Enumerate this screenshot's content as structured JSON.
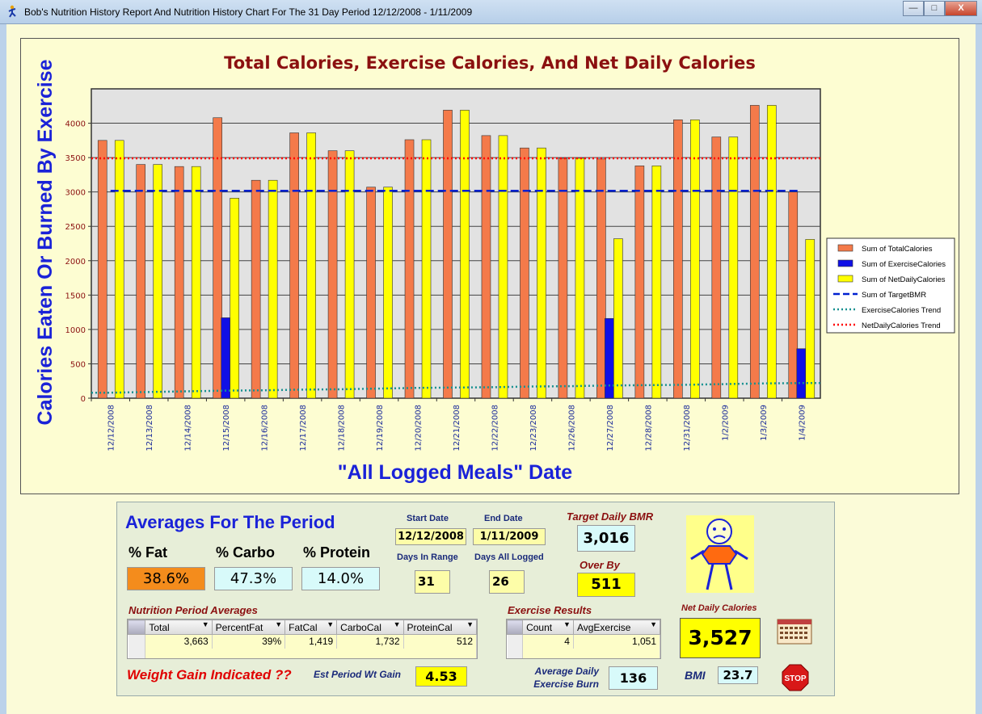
{
  "window": {
    "title": "Bob's Nutrition History Report And Nutrition History Chart For The 31 Day Period 12/12/2008 - 1/11/2009",
    "minimize_label": "—",
    "maximize_label": "□",
    "close_label": "X",
    "icon": "runner-icon"
  },
  "chart_data": {
    "type": "bar",
    "title": "Total Calories, Exercise Calories, And Net Daily Calories",
    "xlabel": "\"All Logged Meals\" Date",
    "ylabel": "Calories Eaten Or Burned By Exercise",
    "ylim": [
      0,
      4500
    ],
    "yticks": [
      0,
      500,
      1000,
      1500,
      2000,
      2500,
      3000,
      3500,
      4000
    ],
    "grid": true,
    "legend_position": "right",
    "categories": [
      "12/12/2008",
      "12/13/2008",
      "12/14/2008",
      "12/15/2008",
      "12/16/2008",
      "12/17/2008",
      "12/18/2008",
      "12/19/2008",
      "12/20/2008",
      "12/21/2008",
      "12/22/2008",
      "12/23/2008",
      "12/26/2008",
      "12/27/2008",
      "12/28/2008",
      "12/31/2008",
      "1/2/2009",
      "1/3/2009",
      "1/4/2009"
    ],
    "series": [
      {
        "name": "Sum of TotalCalories",
        "type": "bar",
        "color": "#f47a4a",
        "values": [
          3750,
          3400,
          3370,
          4080,
          3170,
          3860,
          3600,
          3070,
          3760,
          4190,
          3820,
          3640,
          3490,
          3480,
          3380,
          4050,
          3800,
          4260,
          3000
        ]
      },
      {
        "name": "Sum of ExerciseCalories",
        "type": "bar",
        "color": "#1010e6",
        "values": [
          0,
          0,
          0,
          1170,
          0,
          0,
          0,
          0,
          0,
          0,
          0,
          0,
          0,
          1160,
          0,
          0,
          0,
          0,
          720
        ]
      },
      {
        "name": "Sum of NetDailyCalories",
        "type": "bar",
        "color": "#ffff00",
        "values": [
          3750,
          3400,
          3370,
          2910,
          3170,
          3860,
          3600,
          3070,
          3760,
          4190,
          3820,
          3640,
          3490,
          2320,
          3380,
          4050,
          3800,
          4260,
          2310
        ]
      },
      {
        "name": "Sum of TargetBMR",
        "type": "line",
        "style": "dashed",
        "color": "#0020d0",
        "values": [
          3016,
          3016,
          3016,
          3016,
          3016,
          3016,
          3016,
          3016,
          3016,
          3016,
          3016,
          3016,
          3016,
          3016,
          3016,
          3016,
          3016,
          3016,
          3016
        ]
      },
      {
        "name": "ExerciseCalories Trend",
        "type": "line",
        "style": "dotted",
        "color": "#169090",
        "values": [
          80,
          90,
          100,
          110,
          115,
          125,
          130,
          140,
          150,
          155,
          160,
          170,
          175,
          185,
          190,
          195,
          205,
          215,
          220
        ]
      },
      {
        "name": "NetDailyCalories Trend",
        "type": "line",
        "style": "dotted",
        "color": "#ff0000",
        "values": [
          3490,
          3490,
          3490,
          3490,
          3490,
          3490,
          3490,
          3490,
          3490,
          3490,
          3490,
          3490,
          3490,
          3490,
          3490,
          3490,
          3490,
          3490,
          3490
        ]
      }
    ]
  },
  "averages": {
    "heading": "Averages For The Period",
    "fat_label": "% Fat",
    "carbo_label": "% Carbo",
    "protein_label": "% Protein",
    "fat_value": "38.6%",
    "carbo_value": "47.3%",
    "protein_value": "14.0%",
    "start_date_label": "Start Date",
    "end_date_label": "End Date",
    "start_date": "12/12/2008",
    "end_date": "1/11/2009",
    "days_in_range_label": "Days In Range",
    "days_logged_label": "Days All Logged",
    "days_in_range": "31",
    "days_logged": "26",
    "target_bmr_label": "Target Daily BMR",
    "target_bmr": "3,016",
    "over_by_label": "Over By",
    "over_by": "511",
    "net_daily_label": "Net Daily Calories",
    "net_daily": "3,527",
    "bmi_label": "BMI",
    "bmi": "23.7",
    "weight_gain_label": "Weight Gain Indicated ??",
    "est_wt_gain_label": "Est Period Wt Gain",
    "est_wt_gain": "4.53",
    "avg_burn_label_1": "Average Daily",
    "avg_burn_label_2": "Exercise Burn",
    "avg_burn": "136",
    "status_icon": "sad-face-icon",
    "calendar_icon": "calendar-icon",
    "stop_label": "STOP"
  },
  "nutrition_table": {
    "caption": "Nutrition Period Averages",
    "columns": [
      "Total",
      "PercentFat",
      "FatCal",
      "CarboCal",
      "ProteinCal"
    ],
    "row": [
      "3,663",
      "39%",
      "1,419",
      "1,732",
      "512"
    ]
  },
  "exercise_table": {
    "caption": "Exercise Results",
    "columns": [
      "Count",
      "AvgExercise"
    ],
    "row": [
      "4",
      "1,051"
    ]
  }
}
